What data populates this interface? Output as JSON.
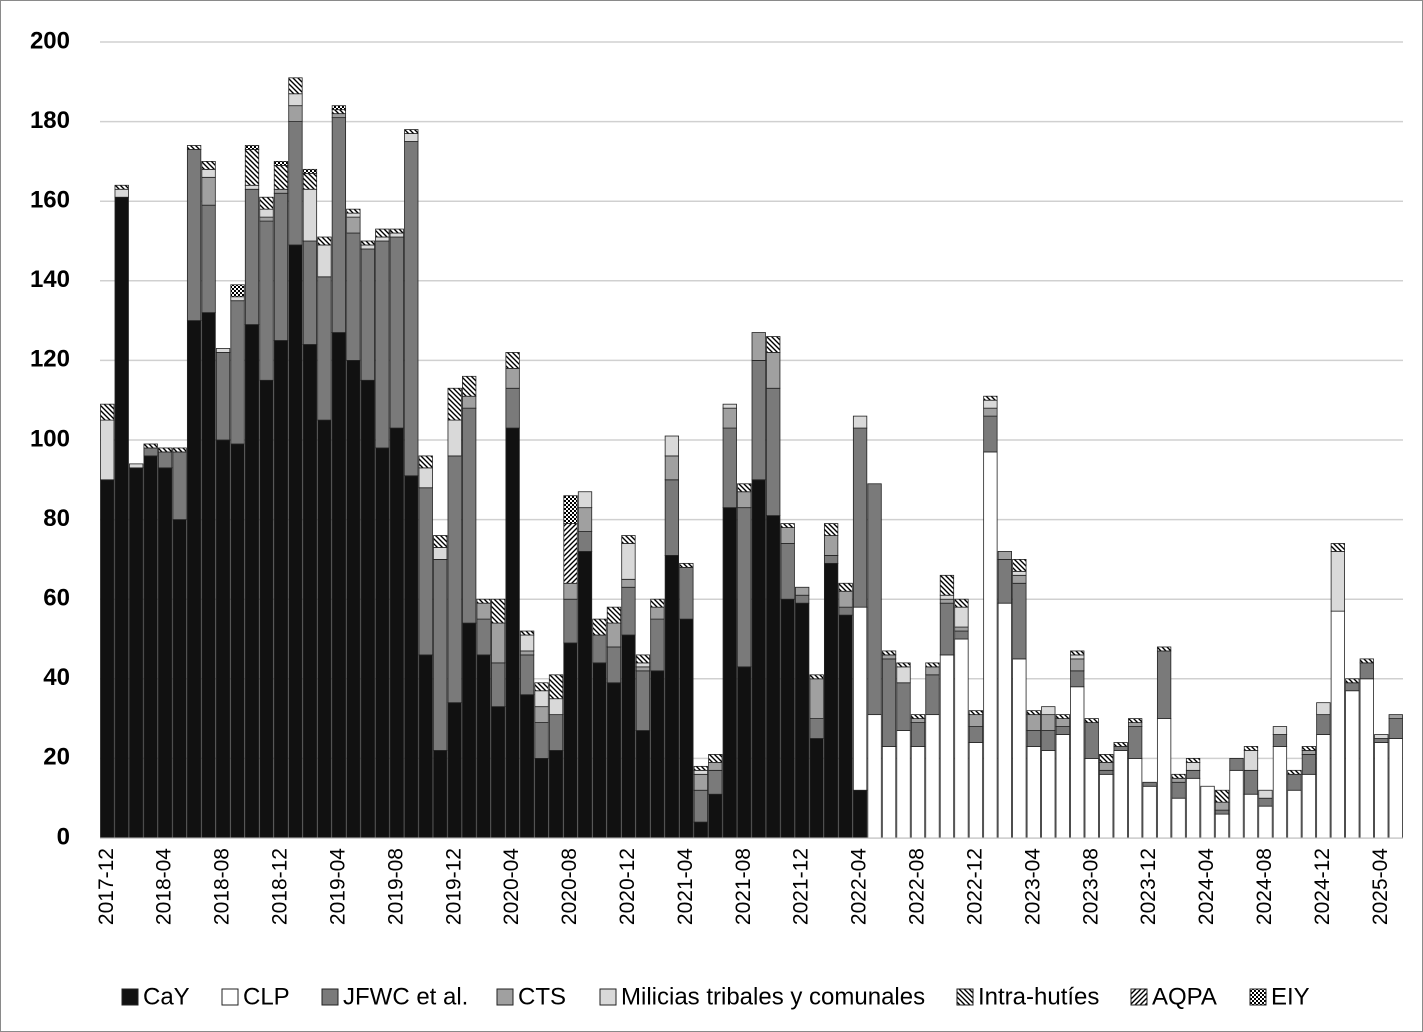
{
  "chart_data": {
    "type": "stacked-bar",
    "categories": [
      "2017-12",
      null,
      null,
      null,
      "2018-04",
      null,
      null,
      null,
      "2018-08",
      null,
      null,
      null,
      "2018-12",
      null,
      null,
      null,
      "2019-04",
      null,
      null,
      null,
      "2019-08",
      null,
      null,
      null,
      "2019-12",
      null,
      null,
      null,
      "2020-04",
      null,
      null,
      null,
      "2020-08",
      null,
      null,
      null,
      "2020-12",
      null,
      null,
      null,
      "2021-04",
      null,
      null,
      null,
      "2021-08",
      null,
      null,
      null,
      "2021-12",
      null,
      null,
      null,
      "2022-04",
      null,
      null,
      null,
      "2022-08",
      null,
      null,
      null,
      "2022-12",
      null,
      null,
      null,
      "2023-04",
      null,
      null,
      null,
      "2023-08",
      null,
      null,
      null,
      "2023-12",
      null,
      null,
      null,
      "2024-04",
      null,
      null,
      null,
      "2024-08",
      null,
      null,
      null,
      "2024-12",
      null,
      null,
      null,
      "2025-04",
      null
    ],
    "series": [
      {
        "name": "CaY",
        "color": "#111111",
        "values": [
          90,
          161,
          93,
          96,
          93,
          80,
          130,
          132,
          100,
          99,
          129,
          115,
          125,
          149,
          124,
          105,
          127,
          120,
          115,
          98,
          103,
          91,
          46,
          22,
          34,
          54,
          46,
          33,
          103,
          36,
          20,
          22,
          49,
          72,
          44,
          39,
          51,
          27,
          42,
          71,
          55,
          4,
          11,
          83,
          43,
          90,
          81,
          60,
          59,
          25,
          69,
          56,
          12,
          0,
          0,
          0,
          0,
          0,
          0,
          0,
          0,
          0,
          0,
          0,
          0,
          0,
          0,
          0,
          0,
          0,
          0,
          0,
          0,
          0,
          0,
          0,
          0,
          0,
          0,
          0,
          0,
          0,
          0,
          0,
          0,
          0,
          0,
          0,
          0,
          0
        ]
      },
      {
        "name": "CLP",
        "color": "#ffffff",
        "values": [
          0,
          0,
          0,
          0,
          0,
          0,
          0,
          0,
          0,
          0,
          0,
          0,
          0,
          0,
          0,
          0,
          0,
          0,
          0,
          0,
          0,
          0,
          0,
          0,
          0,
          0,
          0,
          0,
          0,
          0,
          0,
          0,
          0,
          0,
          0,
          0,
          0,
          0,
          0,
          0,
          0,
          0,
          0,
          0,
          0,
          0,
          0,
          0,
          0,
          0,
          0,
          0,
          46,
          31,
          23,
          27,
          23,
          31,
          46,
          50,
          24,
          97,
          59,
          45,
          23,
          22,
          26,
          38,
          20,
          16,
          22,
          20,
          13,
          30,
          10,
          15,
          13,
          6,
          17,
          11,
          8,
          23,
          12,
          16,
          26,
          57,
          37,
          40,
          24,
          25
        ]
      },
      {
        "name": "JFWC et al.",
        "color": "#7a7a7a",
        "values": [
          0,
          0,
          0,
          2,
          4,
          17,
          43,
          27,
          22,
          36,
          34,
          40,
          37,
          31,
          26,
          36,
          54,
          32,
          33,
          52,
          48,
          84,
          42,
          48,
          62,
          54,
          9,
          11,
          10,
          10,
          9,
          9,
          11,
          5,
          7,
          9,
          12,
          15,
          13,
          19,
          13,
          8,
          6,
          20,
          40,
          30,
          32,
          14,
          2,
          5,
          2,
          2,
          45,
          58,
          22,
          12,
          6,
          10,
          13,
          2,
          4,
          9,
          11,
          19,
          4,
          5,
          2,
          4,
          9,
          1,
          1,
          8,
          1,
          17,
          4,
          2,
          0,
          1,
          3,
          6,
          2,
          3,
          4,
          5,
          5,
          0,
          2,
          4,
          1,
          5
        ]
      },
      {
        "name": "CTS",
        "color": "#a0a0a0",
        "values": [
          0,
          0,
          0,
          0,
          0,
          0,
          0,
          7,
          0,
          0,
          0,
          1,
          1,
          4,
          0,
          0,
          1,
          4,
          0,
          0,
          0,
          0,
          0,
          0,
          0,
          3,
          4,
          10,
          5,
          1,
          4,
          0,
          4,
          6,
          0,
          6,
          2,
          1,
          3,
          6,
          0,
          4,
          2,
          5,
          4,
          7,
          9,
          4,
          2,
          10,
          5,
          4,
          0,
          0,
          1,
          0,
          1,
          2,
          1,
          1,
          3,
          2,
          2,
          2,
          4,
          4,
          2,
          3,
          0,
          2,
          0,
          1,
          0,
          0,
          1,
          0,
          0,
          2,
          0,
          0,
          0,
          0,
          0,
          1,
          0,
          0,
          0,
          0,
          0,
          1
        ]
      },
      {
        "name": "Milicias tribales y comunales",
        "color": "#d9d9d9",
        "values": [
          15,
          2,
          1,
          0,
          0,
          0,
          0,
          2,
          1,
          1,
          1,
          2,
          0,
          3,
          13,
          8,
          0,
          1,
          1,
          1,
          1,
          2,
          5,
          3,
          9,
          0,
          0,
          0,
          0,
          4,
          4,
          4,
          0,
          4,
          0,
          0,
          9,
          1,
          0,
          5,
          0,
          1,
          0,
          1,
          0,
          0,
          0,
          0,
          0,
          0,
          0,
          0,
          3,
          0,
          0,
          4,
          0,
          0,
          1,
          5,
          0,
          2,
          0,
          1,
          0,
          2,
          0,
          1,
          0,
          0,
          0,
          0,
          0,
          0,
          0,
          2,
          0,
          0,
          0,
          5,
          2,
          2,
          0,
          0,
          3,
          15,
          0,
          0,
          1,
          0
        ]
      },
      {
        "name": "Intra-hutíes",
        "color": "#ffffff",
        "pattern": "backslash",
        "values": [
          4,
          1,
          0,
          1,
          1,
          1,
          1,
          2,
          0,
          0,
          9,
          3,
          6,
          4,
          4,
          2,
          1,
          1,
          1,
          2,
          1,
          1,
          3,
          3,
          8,
          5,
          1,
          6,
          4,
          1,
          2,
          6,
          0,
          0,
          4,
          4,
          2,
          2,
          2,
          0,
          1,
          1,
          2,
          0,
          2,
          0,
          4,
          1,
          0,
          1,
          3,
          2,
          0,
          0,
          1,
          1,
          1,
          1,
          5,
          2,
          1,
          1,
          0,
          3,
          1,
          0,
          1,
          1,
          1,
          2,
          1,
          1,
          0,
          1,
          1,
          1,
          0,
          3,
          0,
          1,
          0,
          0,
          1,
          1,
          0,
          2,
          1,
          1,
          0,
          0
        ]
      },
      {
        "name": "AQPA",
        "color": "#ffffff",
        "pattern": "slash",
        "values": [
          0,
          0,
          0,
          0,
          0,
          0,
          0,
          0,
          0,
          0,
          0,
          0,
          0,
          0,
          0,
          0,
          0,
          0,
          0,
          0,
          0,
          0,
          0,
          0,
          0,
          0,
          0,
          0,
          0,
          0,
          0,
          0,
          15,
          0,
          0,
          0,
          0,
          0,
          0,
          0,
          0,
          0,
          0,
          0,
          0,
          0,
          0,
          0,
          0,
          0,
          0,
          0,
          0,
          0,
          0,
          0,
          0,
          0,
          0,
          0,
          0,
          0,
          0,
          0,
          0,
          0,
          0,
          0,
          0,
          0,
          0,
          0,
          0,
          0,
          0,
          0,
          0,
          0,
          0,
          0,
          0,
          0,
          0,
          0,
          0,
          0,
          0,
          0,
          0,
          0
        ]
      },
      {
        "name": "EIY",
        "color": "#ffffff",
        "pattern": "checker",
        "values": [
          0,
          0,
          0,
          0,
          0,
          0,
          0,
          0,
          0,
          3,
          1,
          0,
          1,
          0,
          1,
          0,
          1,
          0,
          0,
          0,
          0,
          0,
          0,
          0,
          0,
          0,
          0,
          0,
          0,
          0,
          0,
          0,
          7,
          0,
          0,
          0,
          0,
          0,
          0,
          0,
          0,
          0,
          0,
          0,
          0,
          0,
          0,
          0,
          0,
          0,
          0,
          0,
          0,
          0,
          0,
          0,
          0,
          0,
          0,
          0,
          0,
          0,
          0,
          0,
          0,
          0,
          0,
          0,
          0,
          0,
          0,
          0,
          0,
          0,
          0,
          0,
          0,
          0,
          0,
          0,
          0,
          0,
          0,
          0,
          0,
          0,
          0,
          0,
          0,
          0
        ]
      }
    ],
    "ylim": [
      0,
      200
    ],
    "yticks": [
      0,
      20,
      40,
      60,
      80,
      100,
      120,
      140,
      160,
      180,
      200
    ],
    "grid": true,
    "legend": "bottom"
  }
}
